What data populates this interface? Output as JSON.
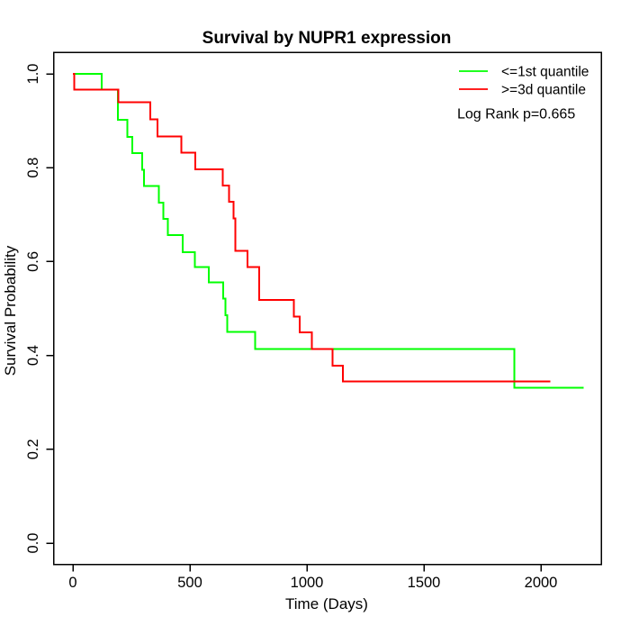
{
  "title": "Survival by NUPR1 expression",
  "axes": {
    "x_label": "Time (Days)",
    "y_label": "Survival Probability",
    "x_tick_labels": [
      "0",
      "500",
      "1000",
      "1500",
      "2000"
    ],
    "y_tick_labels": [
      "0.0",
      "0.2",
      "0.4",
      "0.6",
      "0.8",
      "1.0"
    ]
  },
  "legend": {
    "entries": [
      {
        "label": "<=1st quantile",
        "color": "#00ff00"
      },
      {
        "label": ">=3d quantile",
        "color": "#ff0000"
      }
    ],
    "note": "Log Rank p=0.665"
  },
  "chart_data": {
    "type": "line",
    "subtype": "kaplan-meier-step",
    "title": "Survival by NUPR1 expression",
    "xlabel": "Time (Days)",
    "ylabel": "Survival Probability",
    "xlim": [
      0,
      2200
    ],
    "ylim": [
      0.0,
      1.0
    ],
    "x_ticks": [
      0,
      500,
      1000,
      1500,
      2000
    ],
    "y_ticks": [
      0.0,
      0.2,
      0.4,
      0.6,
      0.8,
      1.0
    ],
    "grid": false,
    "legend_position": "top-right",
    "annotation": "Log Rank p=0.665",
    "series": [
      {
        "name": "<=1st quantile",
        "color": "#00ff00",
        "end_time": 2182,
        "points": [
          [
            0,
            1.0
          ],
          [
            124,
            0.966
          ],
          [
            192,
            0.902
          ],
          [
            233,
            0.866
          ],
          [
            253,
            0.831
          ],
          [
            297,
            0.796
          ],
          [
            303,
            0.761
          ],
          [
            368,
            0.726
          ],
          [
            387,
            0.691
          ],
          [
            406,
            0.656
          ],
          [
            470,
            0.62
          ],
          [
            522,
            0.588
          ],
          [
            580,
            0.556
          ],
          [
            643,
            0.521
          ],
          [
            652,
            0.486
          ],
          [
            660,
            0.45
          ],
          [
            778,
            0.414
          ],
          [
            1887,
            0.331
          ]
        ]
      },
      {
        "name": ">=3d quantile",
        "color": "#ff0000",
        "end_time": 2041,
        "points": [
          [
            0,
            1.0
          ],
          [
            5,
            0.966
          ],
          [
            195,
            0.94
          ],
          [
            330,
            0.903
          ],
          [
            362,
            0.867
          ],
          [
            464,
            0.832
          ],
          [
            524,
            0.797
          ],
          [
            641,
            0.762
          ],
          [
            667,
            0.727
          ],
          [
            686,
            0.692
          ],
          [
            695,
            0.623
          ],
          [
            746,
            0.588
          ],
          [
            797,
            0.518
          ],
          [
            945,
            0.483
          ],
          [
            969,
            0.449
          ],
          [
            1022,
            0.414
          ],
          [
            1109,
            0.378
          ],
          [
            1153,
            0.345
          ]
        ]
      }
    ]
  }
}
